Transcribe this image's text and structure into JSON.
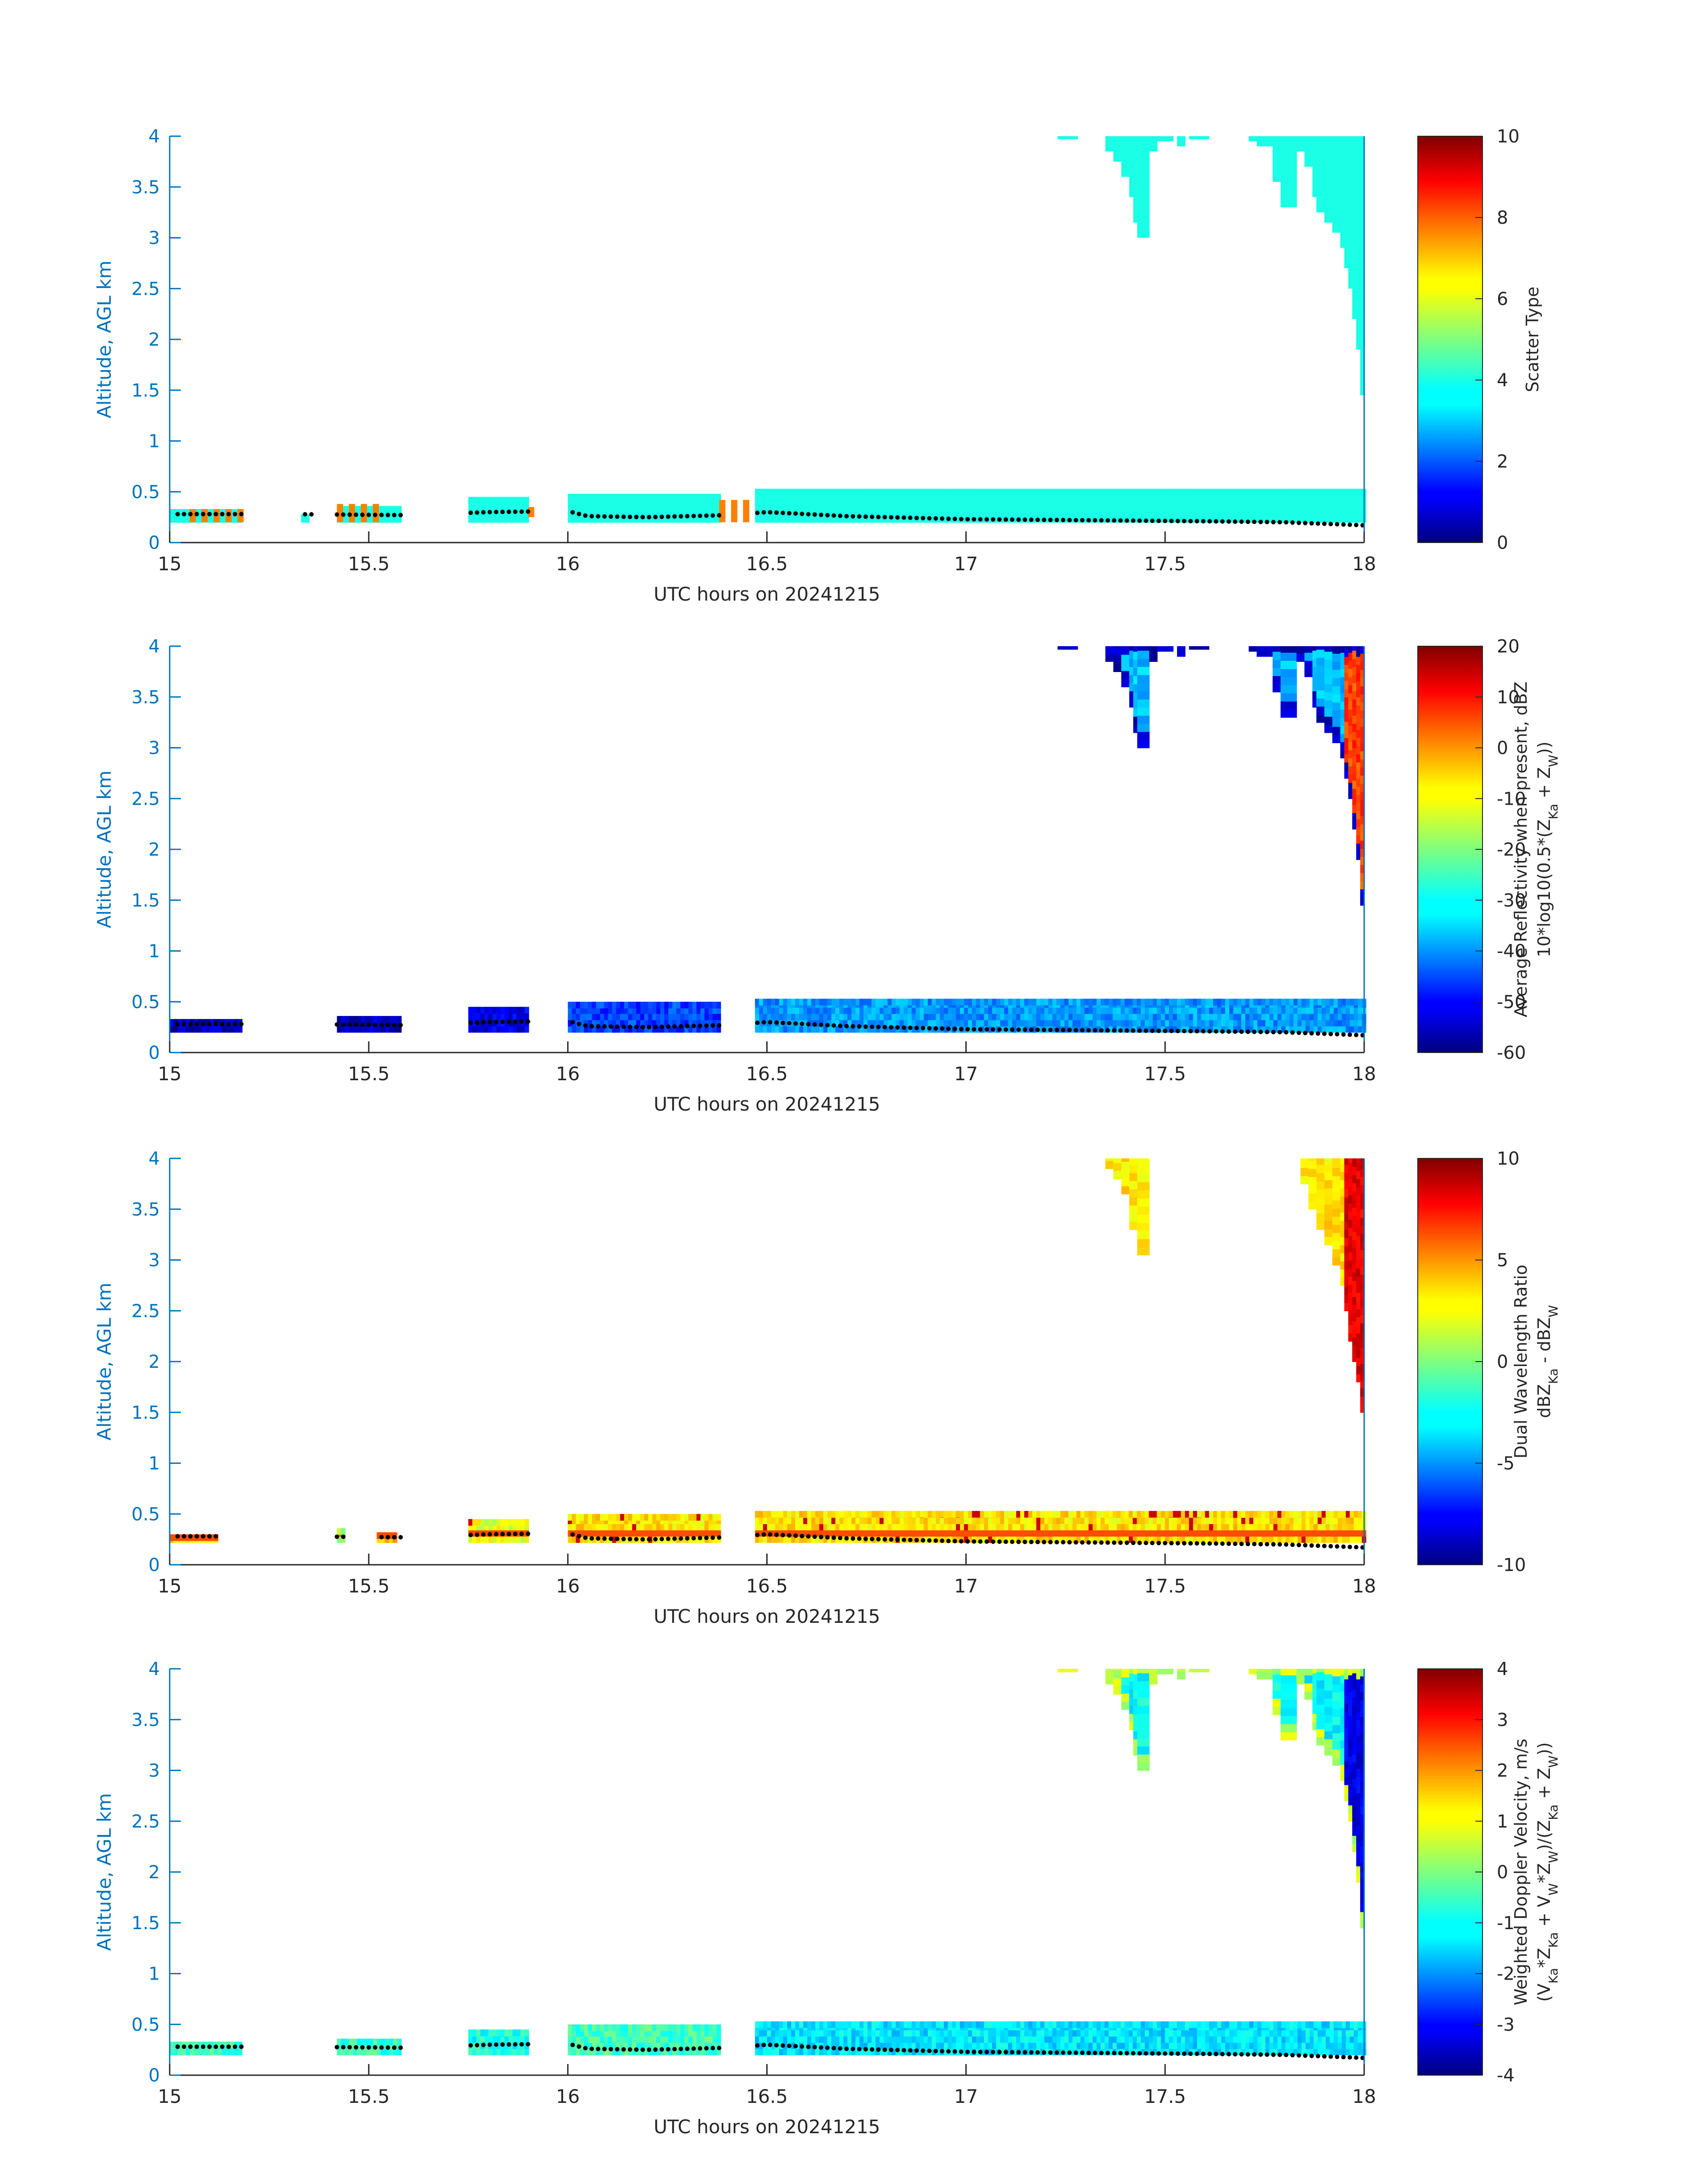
{
  "figure": {
    "panels": [
      {
        "id": "scatter-type",
        "xlabel": "UTC hours on 20241215",
        "ylabel": "Altitude, AGL km",
        "colorbar": {
          "label_lines": [
            "Scatter Type"
          ],
          "ticks": [
            "0",
            "2",
            "4",
            "6",
            "8",
            "10"
          ],
          "range": [
            0,
            10
          ]
        }
      },
      {
        "id": "reflectivity",
        "xlabel": "UTC hours on 20241215",
        "ylabel": "Altitude, AGL km",
        "colorbar": {
          "label_lines": [
            "Average Reflectivity when present, dBZ",
            "10*log10(0.5*(Z_Ka + Z_W))"
          ],
          "ticks": [
            "-60",
            "-50",
            "-40",
            "-30",
            "-20",
            "-10",
            "0",
            "10",
            "20"
          ],
          "range": [
            -60,
            20
          ]
        }
      },
      {
        "id": "dual-wavelength-ratio",
        "xlabel": "UTC hours on 20241215",
        "ylabel": "Altitude, AGL km",
        "colorbar": {
          "label_lines": [
            "Dual Wavelength Ratio",
            "dBZ_Ka - dBZ_W"
          ],
          "ticks": [
            "-10",
            "-5",
            "0",
            "5",
            "10"
          ],
          "range": [
            -10,
            10
          ]
        }
      },
      {
        "id": "doppler-velocity",
        "xlabel": "UTC hours on 20241215",
        "ylabel": "Altitude, AGL km",
        "colorbar": {
          "label_lines": [
            "Weighted Doppler Velocity, m/s",
            "(V_Ka*Z_Ka + V_W*Z_W)/(Z_Ka + Z_W))"
          ],
          "ticks": [
            "-4",
            "-3",
            "-2",
            "-1",
            "0",
            "1",
            "2",
            "3",
            "4"
          ],
          "range": [
            -4,
            4
          ]
        }
      }
    ]
  },
  "chart_data": [
    {
      "type": "heatmap",
      "panel": "scatter-type",
      "xlabel": "UTC hours on 20241215",
      "ylabel": "Altitude, AGL km",
      "xlim": [
        15,
        18
      ],
      "ylim": [
        0,
        4
      ],
      "xticks": [
        "15",
        "15.5",
        "16",
        "16.5",
        "17",
        "17.5",
        "18"
      ],
      "yticks": [
        "0",
        "0.5",
        "1",
        "1.5",
        "2",
        "2.5",
        "3",
        "3.5",
        "4"
      ],
      "colormap": "jet",
      "clim": [
        0,
        10
      ],
      "colorbar_label": "Scatter Type",
      "colorbar_ticks": [
        "0",
        "2",
        "4",
        "6",
        "8",
        "10"
      ],
      "dominant_value": 4,
      "echo_segments": [
        {
          "t": [
            15.0,
            15.18
          ],
          "z": [
            0.2,
            0.33
          ],
          "value": 4
        },
        {
          "t": [
            15.33,
            15.35
          ],
          "z": [
            0.2,
            0.28
          ],
          "value": 4
        },
        {
          "t": [
            15.42,
            15.58
          ],
          "z": [
            0.2,
            0.36
          ],
          "value": 4
        },
        {
          "t": [
            15.75,
            15.9
          ],
          "z": [
            0.2,
            0.45
          ],
          "value": 4
        },
        {
          "t": [
            16.0,
            16.38
          ],
          "z": [
            0.2,
            0.48
          ],
          "value": 4
        },
        {
          "t": [
            16.47,
            18.0
          ],
          "z": [
            0.2,
            0.53
          ],
          "value": 4
        }
      ],
      "secondary_values": [
        {
          "t": [
            15.05,
            15.18
          ],
          "z": [
            0.2,
            0.33
          ],
          "value": 7.5
        },
        {
          "t": [
            15.42,
            15.52
          ],
          "z": [
            0.2,
            0.38
          ],
          "value": 7.5
        },
        {
          "t": [
            16.38,
            16.47
          ],
          "z": [
            0.2,
            0.42
          ],
          "value": 7.5
        },
        {
          "t": [
            15.9,
            15.92
          ],
          "z": [
            0.25,
            0.35
          ],
          "value": 7.5
        }
      ],
      "upper_cloud": "cloud",
      "ground_line": "ground"
    },
    {
      "type": "heatmap",
      "panel": "reflectivity",
      "xlabel": "UTC hours on 20241215",
      "ylabel": "Altitude, AGL km",
      "xlim": [
        15,
        18
      ],
      "ylim": [
        0,
        4
      ],
      "xticks": [
        "15",
        "15.5",
        "16",
        "16.5",
        "17",
        "17.5",
        "18"
      ],
      "yticks": [
        "0",
        "0.5",
        "1",
        "1.5",
        "2",
        "2.5",
        "3",
        "3.5",
        "4"
      ],
      "colormap": "jet",
      "clim": [
        -60,
        20
      ],
      "colorbar_label": "Average Reflectivity when present, dBZ / 10*log10(0.5*(Z_Ka + Z_W))",
      "colorbar_ticks": [
        "-60",
        "-50",
        "-40",
        "-30",
        "-20",
        "-10",
        "0",
        "10",
        "20"
      ],
      "echo_segments": [
        {
          "t": [
            15.0,
            15.18
          ],
          "z": [
            0.2,
            0.33
          ],
          "value": -55
        },
        {
          "t": [
            15.42,
            15.58
          ],
          "z": [
            0.2,
            0.36
          ],
          "value": -55
        },
        {
          "t": [
            15.75,
            15.9
          ],
          "z": [
            0.2,
            0.45
          ],
          "value": -52
        },
        {
          "t": [
            16.0,
            16.38
          ],
          "z": [
            0.2,
            0.5
          ],
          "value": -45
        },
        {
          "t": [
            16.47,
            18.0
          ],
          "z": [
            0.2,
            0.53
          ],
          "value": -38
        }
      ],
      "upper_cloud_values": {
        "edges": -55,
        "interior": -35,
        "core_near_18": 5
      },
      "upper_cloud": "cloud",
      "ground_line": "ground"
    },
    {
      "type": "heatmap",
      "panel": "dual-wavelength-ratio",
      "xlabel": "UTC hours on 20241215",
      "ylabel": "Altitude, AGL km",
      "xlim": [
        15,
        18
      ],
      "ylim": [
        0,
        4
      ],
      "xticks": [
        "15",
        "15.5",
        "16",
        "16.5",
        "17",
        "17.5",
        "18"
      ],
      "yticks": [
        "0",
        "0.5",
        "1",
        "1.5",
        "2",
        "2.5",
        "3",
        "3.5",
        "4"
      ],
      "colormap": "jet",
      "clim": [
        -10,
        10
      ],
      "colorbar_label": "Dual Wavelength Ratio / dBZ_Ka - dBZ_W",
      "colorbar_ticks": [
        "-10",
        "-5",
        "0",
        "5",
        "10"
      ],
      "echo_segments": [
        {
          "t": [
            15.0,
            15.12
          ],
          "z": [
            0.22,
            0.3
          ],
          "value": 3
        },
        {
          "t": [
            15.42,
            15.44
          ],
          "z": [
            0.22,
            0.36
          ],
          "value": 1
        },
        {
          "t": [
            15.52,
            15.57
          ],
          "z": [
            0.22,
            0.32
          ],
          "value": 4
        },
        {
          "t": [
            15.75,
            15.9
          ],
          "z": [
            0.22,
            0.45
          ],
          "value": 2
        },
        {
          "t": [
            16.0,
            16.38
          ],
          "z": [
            0.22,
            0.5
          ],
          "value": 3
        },
        {
          "t": [
            16.47,
            18.0
          ],
          "z": [
            0.22,
            0.53
          ],
          "value": 3
        }
      ],
      "band_value_near_0.3km": 6,
      "upper_cloud_values": {
        "interior": 3,
        "core_near_18": 8
      },
      "upper_cloud": "dwr",
      "ground_line": "ground"
    },
    {
      "type": "heatmap",
      "panel": "doppler-velocity",
      "xlabel": "UTC hours on 20241215",
      "ylabel": "Altitude, AGL km",
      "xlim": [
        15,
        18
      ],
      "ylim": [
        0,
        4
      ],
      "xticks": [
        "15",
        "15.5",
        "16",
        "16.5",
        "17",
        "17.5",
        "18"
      ],
      "yticks": [
        "0",
        "0.5",
        "1",
        "1.5",
        "2",
        "2.5",
        "3",
        "3.5",
        "4"
      ],
      "colormap": "jet",
      "clim": [
        -4,
        4
      ],
      "colorbar_label": "Weighted Doppler Velocity, m/s / (V_Ka*Z_Ka + V_W*Z_W)/(Z_Ka + Z_W))",
      "colorbar_ticks": [
        "-4",
        "-3",
        "-2",
        "-1",
        "0",
        "1",
        "2",
        "3",
        "4"
      ],
      "echo_segments": [
        {
          "t": [
            15.0,
            15.18
          ],
          "z": [
            0.2,
            0.33
          ],
          "value": -0.5
        },
        {
          "t": [
            15.42,
            15.58
          ],
          "z": [
            0.2,
            0.36
          ],
          "value": -0.6
        },
        {
          "t": [
            15.75,
            15.9
          ],
          "z": [
            0.2,
            0.45
          ],
          "value": -0.8
        },
        {
          "t": [
            16.0,
            16.38
          ],
          "z": [
            0.2,
            0.5
          ],
          "value": -0.5
        },
        {
          "t": [
            16.47,
            18.0
          ],
          "z": [
            0.2,
            0.53
          ],
          "value": -1.2
        }
      ],
      "upper_cloud_values": {
        "edges": 0.5,
        "interior": -1.0,
        "core_near_18": -3.2
      },
      "upper_cloud": "cloud",
      "ground_line": "ground"
    }
  ],
  "shapes": {
    "cloud": {
      "columns": [
        [
          17.23,
          17.28,
          3.97
        ],
        [
          17.35,
          17.37,
          3.85
        ],
        [
          17.37,
          17.39,
          3.75
        ],
        [
          17.39,
          17.41,
          3.6
        ],
        [
          17.41,
          17.42,
          3.4
        ],
        [
          17.42,
          17.43,
          3.15
        ],
        [
          17.43,
          17.46,
          3.0
        ],
        [
          17.46,
          17.48,
          3.85
        ],
        [
          17.48,
          17.52,
          3.95
        ],
        [
          17.53,
          17.55,
          3.9
        ],
        [
          17.56,
          17.61,
          3.97
        ],
        [
          17.71,
          17.73,
          3.95
        ],
        [
          17.73,
          17.77,
          3.9
        ],
        [
          17.77,
          17.79,
          3.55
        ],
        [
          17.79,
          17.83,
          3.3
        ],
        [
          17.83,
          17.85,
          3.85
        ],
        [
          17.85,
          17.87,
          3.7
        ],
        [
          17.87,
          17.88,
          3.4
        ],
        [
          17.88,
          17.9,
          3.25
        ],
        [
          17.9,
          17.92,
          3.15
        ],
        [
          17.92,
          17.94,
          3.05
        ],
        [
          17.94,
          17.95,
          2.9
        ],
        [
          17.95,
          17.96,
          2.7
        ],
        [
          17.96,
          17.97,
          2.5
        ],
        [
          17.97,
          17.98,
          2.2
        ],
        [
          17.98,
          17.99,
          1.9
        ],
        [
          17.99,
          18.0,
          1.45
        ]
      ]
    },
    "dwr": {
      "columns": [
        [
          17.35,
          17.37,
          3.9
        ],
        [
          17.37,
          17.39,
          3.8
        ],
        [
          17.39,
          17.41,
          3.65
        ],
        [
          17.41,
          17.43,
          3.3
        ],
        [
          17.43,
          17.46,
          3.05
        ],
        [
          17.84,
          17.86,
          3.75
        ],
        [
          17.86,
          17.88,
          3.5
        ],
        [
          17.88,
          17.9,
          3.3
        ],
        [
          17.9,
          17.92,
          3.15
        ],
        [
          17.92,
          17.94,
          2.95
        ],
        [
          17.94,
          17.95,
          2.75
        ],
        [
          17.95,
          17.96,
          2.5
        ],
        [
          17.96,
          17.97,
          2.2
        ],
        [
          17.97,
          17.98,
          2.0
        ],
        [
          17.98,
          17.99,
          1.8
        ],
        [
          17.99,
          18.0,
          1.5
        ]
      ]
    },
    "ground": {
      "points": [
        [
          15.02,
          0.28
        ],
        [
          15.3,
          0.28
        ],
        [
          15.6,
          0.27
        ],
        [
          15.8,
          0.3
        ],
        [
          16.0,
          0.31
        ],
        [
          16.05,
          0.26
        ],
        [
          16.2,
          0.25
        ],
        [
          16.4,
          0.27
        ],
        [
          16.5,
          0.3
        ],
        [
          16.7,
          0.26
        ],
        [
          17.0,
          0.23
        ],
        [
          17.3,
          0.22
        ],
        [
          17.6,
          0.21
        ],
        [
          17.8,
          0.2
        ],
        [
          18.0,
          0.17
        ]
      ]
    }
  }
}
